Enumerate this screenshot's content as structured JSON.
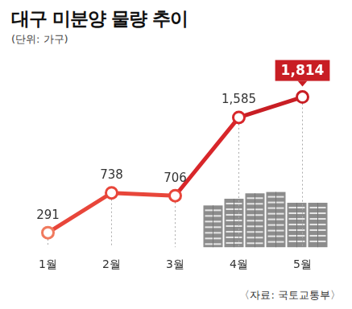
{
  "chart_data": {
    "type": "line",
    "title": "대구 미분양 물량 추이",
    "subtitle": "(단위: 가구)",
    "source": "〈자료: 국토교통부〉",
    "categories": [
      "1월",
      "2월",
      "3월",
      "4월",
      "5월"
    ],
    "values": [
      291,
      738,
      706,
      1585,
      1814
    ],
    "value_labels": [
      "291",
      "738",
      "706",
      "1,585",
      "1,814"
    ],
    "color": "#e0392e",
    "colors": [
      "#f07a5e",
      "#e8463a",
      "#e8463a",
      "#d8262a",
      "#c81e24"
    ],
    "data_labels": true,
    "tick_labels": "x"
  }
}
